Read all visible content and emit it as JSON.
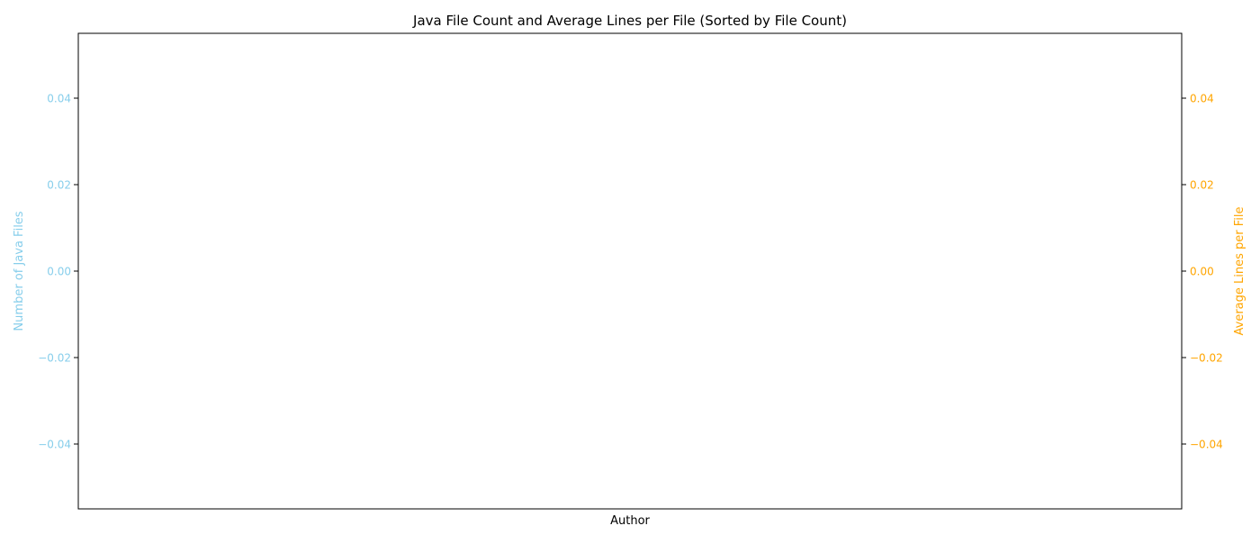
{
  "chart_data": {
    "type": "bar",
    "title": "Java File Count and Average Lines per File (Sorted by File Count)",
    "xlabel": "Author",
    "categories": [],
    "y_left": {
      "label": "Number of Java Files",
      "color": "#87CEEB",
      "ylim": [
        -0.055,
        0.055
      ],
      "ticks": [
        0.04,
        0.02,
        0.0,
        -0.02,
        -0.04
      ],
      "tick_labels": [
        "0.04",
        "0.02",
        "0.00",
        "−0.02",
        "−0.04"
      ]
    },
    "y_right": {
      "label": "Average Lines per File",
      "color": "#FFA500",
      "ylim": [
        -0.055,
        0.055
      ],
      "ticks": [
        0.04,
        0.02,
        0.0,
        -0.02,
        -0.04
      ],
      "tick_labels": [
        "0.04",
        "0.02",
        "0.00",
        "−0.02",
        "−0.04"
      ]
    },
    "series": [
      {
        "name": "Number of Java Files",
        "axis": "left",
        "kind": "bar",
        "values": []
      },
      {
        "name": "Average Lines per File",
        "axis": "right",
        "kind": "line",
        "values": []
      }
    ],
    "grid": false
  }
}
